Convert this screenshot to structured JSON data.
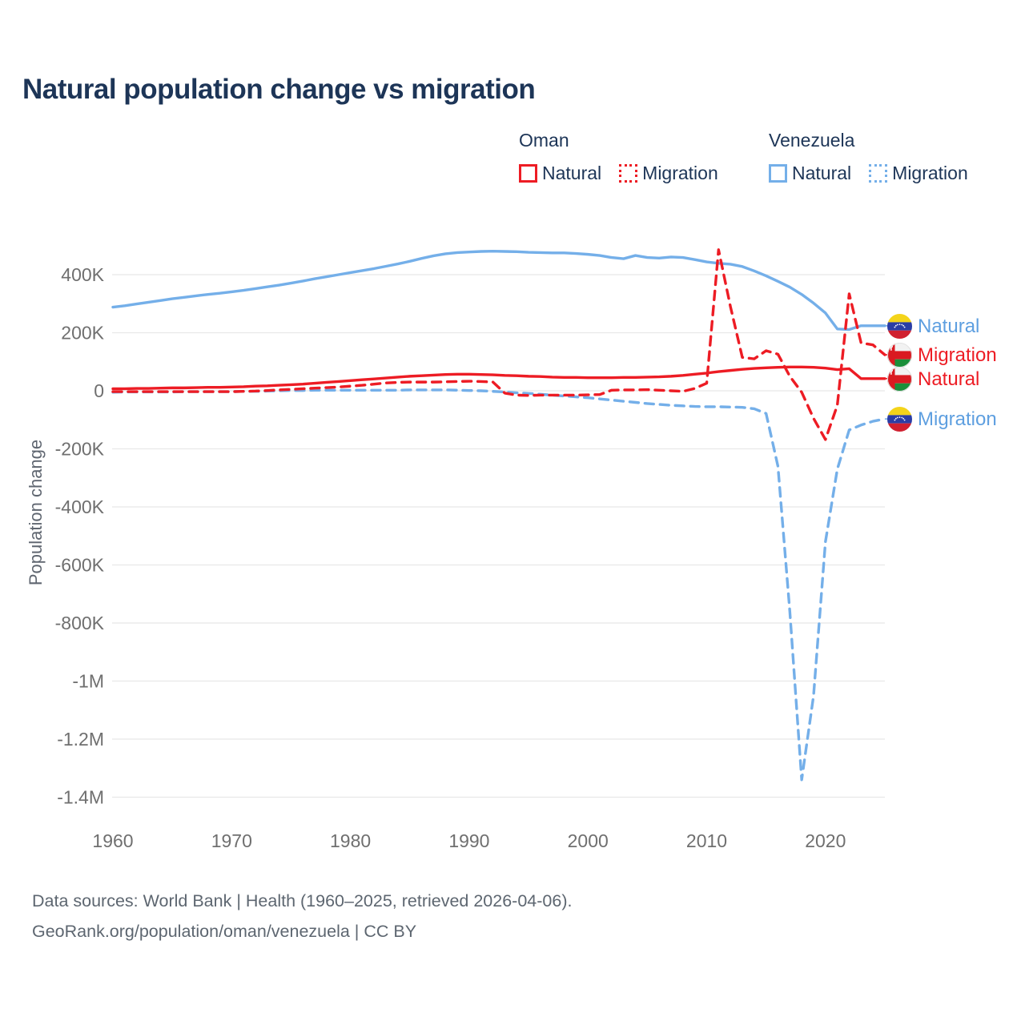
{
  "title": "Natural population change vs migration",
  "legend": {
    "groups": [
      {
        "country": "Oman",
        "color": "#ed1c24",
        "items": [
          {
            "label": "Natural",
            "line_style": "solid"
          },
          {
            "label": "Migration",
            "line_style": "dotted"
          }
        ]
      },
      {
        "country": "Venezuela",
        "color": "#74afe9",
        "items": [
          {
            "label": "Natural",
            "line_style": "solid"
          },
          {
            "label": "Migration",
            "line_style": "dotted"
          }
        ]
      }
    ]
  },
  "right_labels": [
    {
      "label": "Natural",
      "country": "Venezuela",
      "color": "#5e9fe0",
      "flag": "venezuela"
    },
    {
      "label": "Migration",
      "country": "Oman",
      "color": "#ed1c24",
      "flag": "oman"
    },
    {
      "label": "Natural",
      "country": "Oman",
      "color": "#ed1c24",
      "flag": "oman"
    },
    {
      "label": "Migration",
      "country": "Venezuela",
      "color": "#5e9fe0",
      "flag": "venezuela"
    }
  ],
  "footer": {
    "line1": "Data sources: World Bank | Health (1960–2025, retrieved 2026-04-06).",
    "line2": "GeoRank.org/population/oman/venezuela | CC BY"
  },
  "chart_data": {
    "type": "line",
    "title": "Natural population change vs migration",
    "xlabel": "",
    "ylabel": "Population change",
    "units": "persons (values in thousands)",
    "xlim": [
      1960,
      2025
    ],
    "ylim_thousands": [
      -1450,
      560
    ],
    "grid": true,
    "legend_position": "top-right",
    "x_ticks": [
      1960,
      1970,
      1980,
      1990,
      2000,
      2010,
      2020
    ],
    "y_ticks": [
      {
        "value": 400,
        "label": "400K"
      },
      {
        "value": 200,
        "label": "200K"
      },
      {
        "value": 0,
        "label": "0"
      },
      {
        "value": -200,
        "label": "-200K"
      },
      {
        "value": -400,
        "label": "-400K"
      },
      {
        "value": -600,
        "label": "-600K"
      },
      {
        "value": -800,
        "label": "-800K"
      },
      {
        "value": -1000,
        "label": "-1M"
      },
      {
        "value": -1200,
        "label": "-1.2M"
      },
      {
        "value": -1400,
        "label": "-1.4M"
      }
    ],
    "x": [
      1960,
      1961,
      1962,
      1963,
      1964,
      1965,
      1966,
      1967,
      1968,
      1969,
      1970,
      1971,
      1972,
      1973,
      1974,
      1975,
      1976,
      1977,
      1978,
      1979,
      1980,
      1981,
      1982,
      1983,
      1984,
      1985,
      1986,
      1987,
      1988,
      1989,
      1990,
      1991,
      1992,
      1993,
      1994,
      1995,
      1996,
      1997,
      1998,
      1999,
      2000,
      2001,
      2002,
      2003,
      2004,
      2005,
      2006,
      2007,
      2008,
      2009,
      2010,
      2011,
      2012,
      2013,
      2014,
      2015,
      2016,
      2017,
      2018,
      2019,
      2020,
      2021,
      2022,
      2023,
      2024,
      2025
    ],
    "series": [
      {
        "id": "venezuela-natural",
        "name": "Venezuela Natural",
        "color": "#74afe9",
        "dash": "solid",
        "values": [
          288,
          293,
          299,
          305,
          311,
          317,
          322,
          327,
          332,
          336,
          341,
          346,
          352,
          358,
          364,
          371,
          378,
          386,
          393,
          400,
          407,
          414,
          421,
          429,
          437,
          446,
          456,
          465,
          472,
          476,
          478,
          480,
          481,
          480,
          479,
          477,
          476,
          475,
          475,
          473,
          470,
          466,
          459,
          455,
          466,
          459,
          457,
          461,
          459,
          452,
          444,
          439,
          436,
          428,
          413,
          396,
          377,
          357,
          332,
          302,
          268,
          213,
          211,
          224,
          224,
          224
        ]
      },
      {
        "id": "venezuela-migration",
        "name": "Venezuela Migration",
        "color": "#74afe9",
        "dash": "dashed",
        "values": [
          -5,
          -4,
          -4,
          -4,
          -4,
          -4,
          -3,
          -3,
          -3,
          -3,
          -3,
          -2,
          -2,
          -1,
          0,
          1,
          1,
          2,
          2,
          2,
          2,
          2,
          2,
          2,
          2,
          3,
          3,
          3,
          3,
          2,
          1,
          0,
          -2,
          -4,
          -7,
          -9,
          -12,
          -15,
          -18,
          -21,
          -24,
          -28,
          -32,
          -36,
          -40,
          -44,
          -47,
          -50,
          -52,
          -54,
          -55,
          -55,
          -56,
          -57,
          -62,
          -78,
          -260,
          -760,
          -1340,
          -1050,
          -520,
          -270,
          -135,
          -118,
          -105,
          -97
        ]
      },
      {
        "id": "oman-natural",
        "name": "Oman Natural",
        "color": "#ed1c24",
        "dash": "solid",
        "values": [
          7,
          7,
          8,
          8,
          9,
          10,
          10,
          11,
          12,
          12,
          13,
          14,
          16,
          17,
          19,
          21,
          23,
          26,
          29,
          32,
          35,
          38,
          41,
          44,
          47,
          50,
          52,
          54,
          56,
          57,
          57,
          56,
          55,
          53,
          52,
          50,
          49,
          47,
          46,
          46,
          45,
          45,
          45,
          46,
          46,
          47,
          48,
          50,
          53,
          57,
          61,
          66,
          70,
          74,
          77,
          79,
          81,
          82,
          82,
          81,
          78,
          73,
          76,
          42,
          42,
          42
        ]
      },
      {
        "id": "oman-migration",
        "name": "Oman Migration",
        "color": "#ed1c24",
        "dash": "dashed",
        "values": [
          -3,
          -3,
          -3,
          -3,
          -3,
          -3,
          -3,
          -3,
          -3,
          -3,
          -3,
          -2,
          -1,
          1,
          3,
          5,
          7,
          9,
          11,
          13,
          16,
          19,
          23,
          27,
          29,
          30,
          30,
          30,
          31,
          32,
          33,
          32,
          30,
          -8,
          -15,
          -16,
          -15,
          -15,
          -15,
          -15,
          -14,
          -13,
          2,
          3,
          3,
          4,
          2,
          0,
          -2,
          8,
          26,
          486,
          290,
          115,
          110,
          138,
          126,
          50,
          -5,
          -95,
          -168,
          -50,
          334,
          165,
          158,
          124
        ]
      }
    ]
  }
}
